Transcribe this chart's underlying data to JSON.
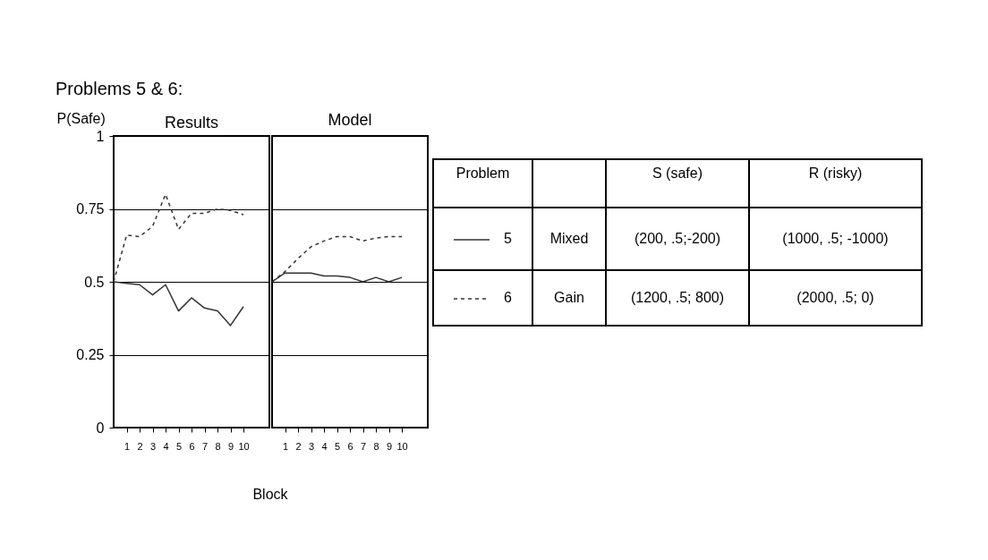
{
  "chart_data": [
    {
      "type": "line",
      "title": "Results",
      "ylabel": "P(Safe)",
      "xlabel": "Block",
      "annotations": [
        "Problems 5 & 6:"
      ],
      "x": [
        0,
        1,
        2,
        3,
        4,
        5,
        6,
        7,
        8,
        9,
        10
      ],
      "xlim": [
        0,
        12
      ],
      "xticks": [
        1,
        2,
        3,
        4,
        5,
        6,
        7,
        8,
        9,
        10
      ],
      "ylim": [
        0,
        1
      ],
      "yticks": [
        0,
        0.25,
        0.5,
        0.75,
        1
      ],
      "grid": "y",
      "legend": false,
      "series": [
        {
          "color": "#333333",
          "line_style": "solid",
          "values": [
            0.5,
            0.495,
            0.49,
            0.455,
            0.49,
            0.4,
            0.445,
            0.41,
            0.4,
            0.35,
            0.415
          ]
        },
        {
          "color": "#333333",
          "line_style": "dashed",
          "values": [
            0.5,
            0.66,
            0.655,
            0.69,
            0.8,
            0.68,
            0.735,
            0.735,
            0.75,
            0.745,
            0.73
          ]
        }
      ]
    },
    {
      "type": "line",
      "title": "Model",
      "x": [
        0,
        1,
        2,
        3,
        4,
        5,
        6,
        7,
        8,
        9,
        10
      ],
      "xlim": [
        0,
        12
      ],
      "xticks": [
        1,
        2,
        3,
        4,
        5,
        6,
        7,
        8,
        9,
        10
      ],
      "ylim": [
        0,
        1
      ],
      "yticks": [
        0,
        0.25,
        0.5,
        0.75,
        1
      ],
      "grid": "y",
      "tick_labels": "x",
      "legend": "right",
      "annotations": [
        "Problem",
        "S (safe)",
        "R (risky)",
        "Mixed",
        "(200, .5;-200)",
        "(1000, .5; -1000)",
        "Gain",
        "(1200, .5; 800)",
        "(2000, .5; 0)"
      ],
      "series": [
        {
          "name": "5",
          "color": "#333333",
          "line_style": "solid",
          "values": [
            0.5,
            0.53,
            0.53,
            0.53,
            0.52,
            0.52,
            0.515,
            0.5,
            0.515,
            0.5,
            0.515
          ]
        },
        {
          "name": "6",
          "color": "#333333",
          "line_style": "dashed",
          "values": [
            0.5,
            0.535,
            0.58,
            0.62,
            0.64,
            0.655,
            0.655,
            0.64,
            0.65,
            0.655,
            0.655
          ]
        }
      ]
    }
  ]
}
